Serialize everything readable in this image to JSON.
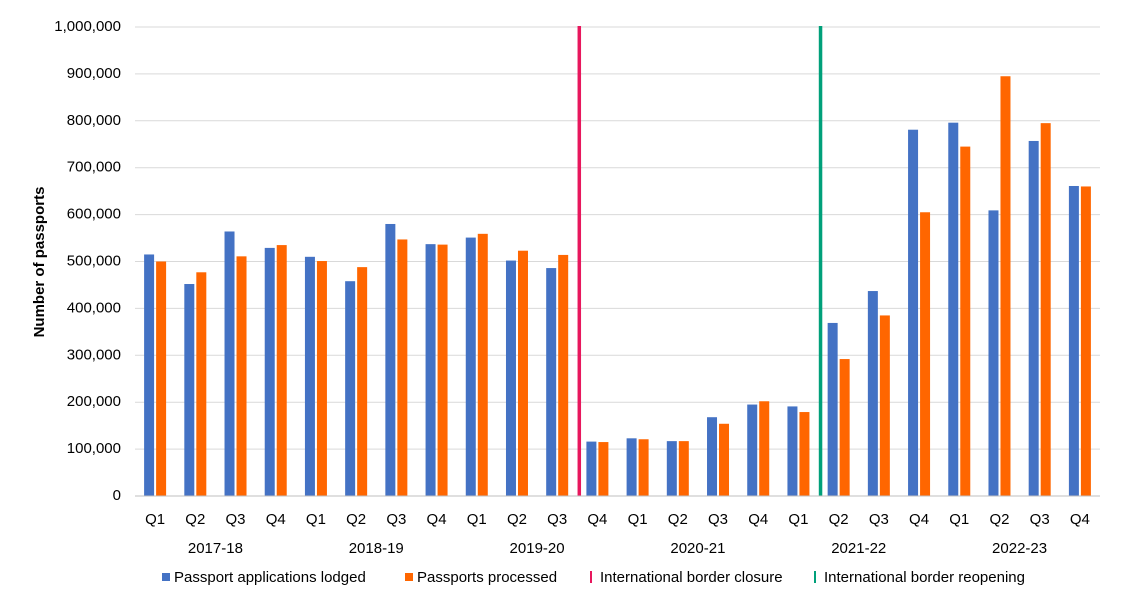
{
  "chart_data": {
    "type": "bar",
    "title": "",
    "xlabel": "",
    "ylabel": "Number of passports",
    "ylim": [
      0,
      1000000
    ],
    "yticks": [
      0,
      100000,
      200000,
      300000,
      400000,
      500000,
      600000,
      700000,
      800000,
      900000,
      1000000
    ],
    "ytick_labels": [
      "0",
      "100,000",
      "200,000",
      "300,000",
      "400,000",
      "500,000",
      "600,000",
      "700,000",
      "800,000",
      "900,000",
      "1,000,000"
    ],
    "grid": true,
    "legend_position": "bottom",
    "categories": [
      "Q1",
      "Q2",
      "Q3",
      "Q4",
      "Q1",
      "Q2",
      "Q3",
      "Q4",
      "Q1",
      "Q2",
      "Q3",
      "Q4",
      "Q1",
      "Q2",
      "Q3",
      "Q4",
      "Q1",
      "Q2",
      "Q3",
      "Q4",
      "Q1",
      "Q2",
      "Q3",
      "Q4"
    ],
    "year_groups": [
      {
        "label": "2017-18",
        "start": 0,
        "end": 3
      },
      {
        "label": "2018-19",
        "start": 4,
        "end": 7
      },
      {
        "label": "2019-20",
        "start": 8,
        "end": 11
      },
      {
        "label": "2020-21",
        "start": 12,
        "end": 15
      },
      {
        "label": "2021-22",
        "start": 16,
        "end": 19
      },
      {
        "label": "2022-23",
        "start": 20,
        "end": 23
      }
    ],
    "series": [
      {
        "name": "Passport applications lodged",
        "color": "#4472C4",
        "values": [
          515000,
          452000,
          564000,
          529000,
          510000,
          458000,
          580000,
          537000,
          551000,
          502000,
          486000,
          116000,
          123000,
          117000,
          168000,
          195000,
          191000,
          369000,
          437000,
          781000,
          796000,
          609000,
          757000,
          661000
        ]
      },
      {
        "name": "Passports processed",
        "color": "#FF6600",
        "values": [
          500000,
          477000,
          511000,
          535000,
          501000,
          488000,
          547000,
          536000,
          559000,
          523000,
          514000,
          115000,
          121000,
          117000,
          154000,
          202000,
          179000,
          292000,
          385000,
          605000,
          745000,
          895000,
          795000,
          660000
        ]
      }
    ],
    "markers": [
      {
        "name": "International border closure",
        "color": "#E8175D",
        "after_index": 10
      },
      {
        "name": "International border reopening",
        "color": "#00A07A",
        "after_index": 16
      }
    ]
  }
}
